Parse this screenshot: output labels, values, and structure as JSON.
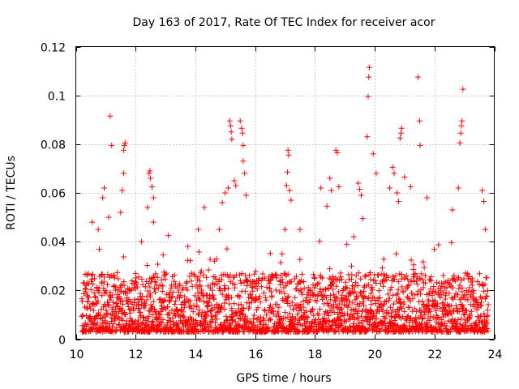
{
  "chart_data": {
    "type": "scatter",
    "title": "Day 163 of 2017, Rate Of TEC Index for receiver acor",
    "xlabel": "GPS time / hours",
    "ylabel": "ROTI / TECUs",
    "xlim": [
      10,
      24
    ],
    "ylim": [
      0,
      0.12
    ],
    "x_ticks": [
      10,
      12,
      14,
      16,
      18,
      20,
      22,
      24
    ],
    "x_tick_labels": [
      "10",
      "12",
      "14",
      "16",
      "18",
      "20",
      "22",
      "24"
    ],
    "y_ticks": [
      0,
      0.02,
      0.04,
      0.06,
      0.08,
      0.1,
      0.12
    ],
    "y_tick_labels": [
      "0",
      "0.02",
      "0.04",
      "0.06",
      "0.08",
      "0.1",
      "0.12"
    ],
    "grid": true,
    "marker": "+",
    "color": "#ff0000",
    "series": [
      {
        "name": "ROTI",
        "base_level_range": [
          0.003,
          0.025
        ],
        "time_range": [
          10.2,
          23.8
        ],
        "points": [
          [
            10.55,
            0.048
          ],
          [
            10.75,
            0.045
          ],
          [
            10.9,
            0.058
          ],
          [
            10.95,
            0.062
          ],
          [
            11.1,
            0.05
          ],
          [
            11.15,
            0.0915
          ],
          [
            11.2,
            0.0795
          ],
          [
            11.5,
            0.052
          ],
          [
            11.55,
            0.061
          ],
          [
            11.6,
            0.068
          ],
          [
            11.6,
            0.0775
          ],
          [
            11.62,
            0.0795
          ],
          [
            11.65,
            0.0805
          ],
          [
            12.2,
            0.04
          ],
          [
            12.4,
            0.054
          ],
          [
            12.45,
            0.068
          ],
          [
            12.48,
            0.069
          ],
          [
            12.5,
            0.066
          ],
          [
            12.55,
            0.0625
          ],
          [
            12.6,
            0.058
          ],
          [
            12.6,
            0.048
          ],
          [
            13.1,
            0.0425
          ],
          [
            13.75,
            0.038
          ],
          [
            14.1,
            0.045
          ],
          [
            14.3,
            0.054
          ],
          [
            14.8,
            0.045
          ],
          [
            14.9,
            0.056
          ],
          [
            15.0,
            0.06
          ],
          [
            15.1,
            0.062
          ],
          [
            15.15,
            0.0895
          ],
          [
            15.18,
            0.0875
          ],
          [
            15.2,
            0.085
          ],
          [
            15.22,
            0.082
          ],
          [
            15.3,
            0.065
          ],
          [
            15.35,
            0.063
          ],
          [
            15.5,
            0.0895
          ],
          [
            15.55,
            0.0865
          ],
          [
            15.58,
            0.0845
          ],
          [
            15.6,
            0.0795
          ],
          [
            15.6,
            0.073
          ],
          [
            15.65,
            0.068
          ],
          [
            15.7,
            0.059
          ],
          [
            16.9,
            0.035
          ],
          [
            17.0,
            0.045
          ],
          [
            17.05,
            0.063
          ],
          [
            17.08,
            0.0685
          ],
          [
            17.1,
            0.0775
          ],
          [
            17.12,
            0.0755
          ],
          [
            17.15,
            0.061
          ],
          [
            17.2,
            0.057
          ],
          [
            17.5,
            0.045
          ],
          [
            18.2,
            0.062
          ],
          [
            18.4,
            0.0545
          ],
          [
            18.5,
            0.066
          ],
          [
            18.55,
            0.061
          ],
          [
            18.7,
            0.0775
          ],
          [
            18.75,
            0.0765
          ],
          [
            18.8,
            0.0625
          ],
          [
            19.3,
            0.042
          ],
          [
            19.45,
            0.064
          ],
          [
            19.5,
            0.0615
          ],
          [
            19.55,
            0.059
          ],
          [
            19.6,
            0.0495
          ],
          [
            19.75,
            0.083
          ],
          [
            19.78,
            0.0995
          ],
          [
            19.8,
            0.1075
          ],
          [
            19.82,
            0.1115
          ],
          [
            19.95,
            0.076
          ],
          [
            20.05,
            0.068
          ],
          [
            20.5,
            0.062
          ],
          [
            20.6,
            0.0705
          ],
          [
            20.65,
            0.068
          ],
          [
            20.75,
            0.06
          ],
          [
            20.8,
            0.0565
          ],
          [
            20.85,
            0.0825
          ],
          [
            20.88,
            0.0845
          ],
          [
            20.9,
            0.0865
          ],
          [
            21.0,
            0.0665
          ],
          [
            21.2,
            0.0625
          ],
          [
            21.45,
            0.1075
          ],
          [
            21.5,
            0.0895
          ],
          [
            21.52,
            0.0795
          ],
          [
            21.75,
            0.058
          ],
          [
            22.6,
            0.053
          ],
          [
            22.8,
            0.062
          ],
          [
            22.85,
            0.0805
          ],
          [
            22.88,
            0.0845
          ],
          [
            22.9,
            0.0875
          ],
          [
            22.92,
            0.0895
          ],
          [
            22.95,
            0.1025
          ],
          [
            23.6,
            0.061
          ],
          [
            23.65,
            0.0565
          ],
          [
            23.7,
            0.045
          ]
        ]
      }
    ]
  }
}
